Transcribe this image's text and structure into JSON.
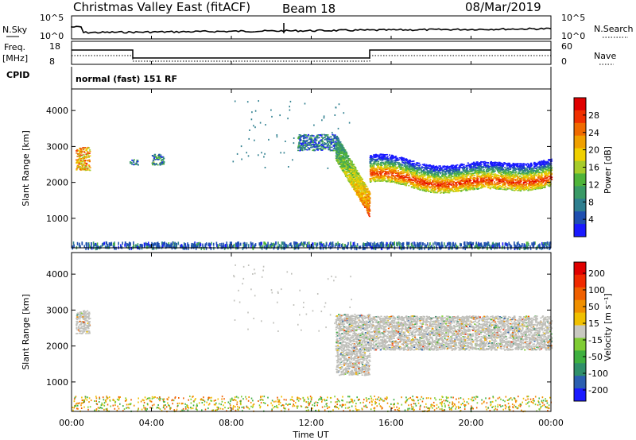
{
  "header": {
    "title": "Christmas Valley East (fitACF)",
    "beam": "Beam 18",
    "date": "08/Mar/2019",
    "mode": "normal (fast) 151 RF"
  },
  "top_panels": {
    "nsky": {
      "label": "N.Sky",
      "ticks": [
        "10^5",
        "10^0"
      ],
      "right_label": "N.Search",
      "right_ticks": [
        "10^5",
        "10^0"
      ]
    },
    "freq": {
      "label_line1": "Freq.",
      "label_line2": "[MHz]",
      "ticks": [
        "18",
        "8"
      ],
      "right_label": "Nave",
      "right_ticks": [
        "60",
        "0"
      ]
    },
    "cpid": {
      "label": "CPID"
    }
  },
  "colors": {
    "power_scale": [
      "#1a1aff",
      "#1f4fb0",
      "#2f7f8f",
      "#3a9a66",
      "#4fb43a",
      "#a6cc2a",
      "#f0d000",
      "#f0a000",
      "#f06a00",
      "#f03000",
      "#e00000"
    ],
    "velocity_scale": [
      "#1a1aff",
      "#2b5fb0",
      "#2f8f6a",
      "#3fb040",
      "#7fcc33",
      "#c8c8c0",
      "#f0c000",
      "#f09000",
      "#f06000",
      "#f02a00",
      "#e00000"
    ],
    "ground_scatter": "#c0c0bb"
  },
  "chart_data": [
    {
      "type": "heatmap",
      "name": "power",
      "ylabel": "Slant Range [km]",
      "xlabel": "Time UT",
      "x_ticks": [
        "00:00",
        "04:00",
        "08:00",
        "12:00",
        "16:00",
        "20:00",
        "00:00"
      ],
      "x_range_hours": [
        0,
        24
      ],
      "y_ticks": [
        1000,
        2000,
        3000,
        4000
      ],
      "ylim": [
        180,
        4600
      ],
      "colorbar": {
        "label": "Power [dB]",
        "ticks": [
          4,
          8,
          12,
          16,
          20,
          24,
          28
        ],
        "range": [
          0,
          32
        ]
      },
      "regions": [
        {
          "t": [
            0.2,
            0.9
          ],
          "r": [
            2350,
            3000
          ],
          "value": 22
        },
        {
          "t": [
            2.9,
            3.3
          ],
          "r": [
            2500,
            2650
          ],
          "value": 6
        },
        {
          "t": [
            4.0,
            4.6
          ],
          "r": [
            2500,
            2800
          ],
          "value": 8
        },
        {
          "t": [
            11.3,
            13.2
          ],
          "r": [
            2900,
            3350
          ],
          "value": 6
        },
        {
          "t": [
            13.2,
            14.9
          ],
          "r": [
            1200,
            2900
          ],
          "value": 14
        },
        {
          "t": [
            14.9,
            24.0
          ],
          "r": [
            1800,
            2850
          ],
          "value": 20
        }
      ]
    },
    {
      "type": "heatmap",
      "name": "velocity",
      "ylabel": "Slant Range [km]",
      "xlabel": "Time UT",
      "x_ticks": [
        "00:00",
        "04:00",
        "08:00",
        "12:00",
        "16:00",
        "20:00",
        "00:00"
      ],
      "x_range_hours": [
        0,
        24
      ],
      "y_ticks": [
        1000,
        2000,
        3000,
        4000
      ],
      "ylim": [
        180,
        4600
      ],
      "colorbar": {
        "label": "Velocity [m s⁻¹]",
        "ticks": [
          200,
          100,
          50,
          15,
          -15,
          -50,
          -100,
          -200
        ]
      },
      "regions": [
        {
          "t": [
            0.2,
            0.9
          ],
          "r": [
            2350,
            3000
          ],
          "value": 0
        },
        {
          "t": [
            13.2,
            14.9
          ],
          "r": [
            1200,
            2900
          ],
          "value": 0
        },
        {
          "t": [
            14.9,
            24.0
          ],
          "r": [
            1900,
            2850
          ],
          "value": 0
        }
      ]
    }
  ]
}
